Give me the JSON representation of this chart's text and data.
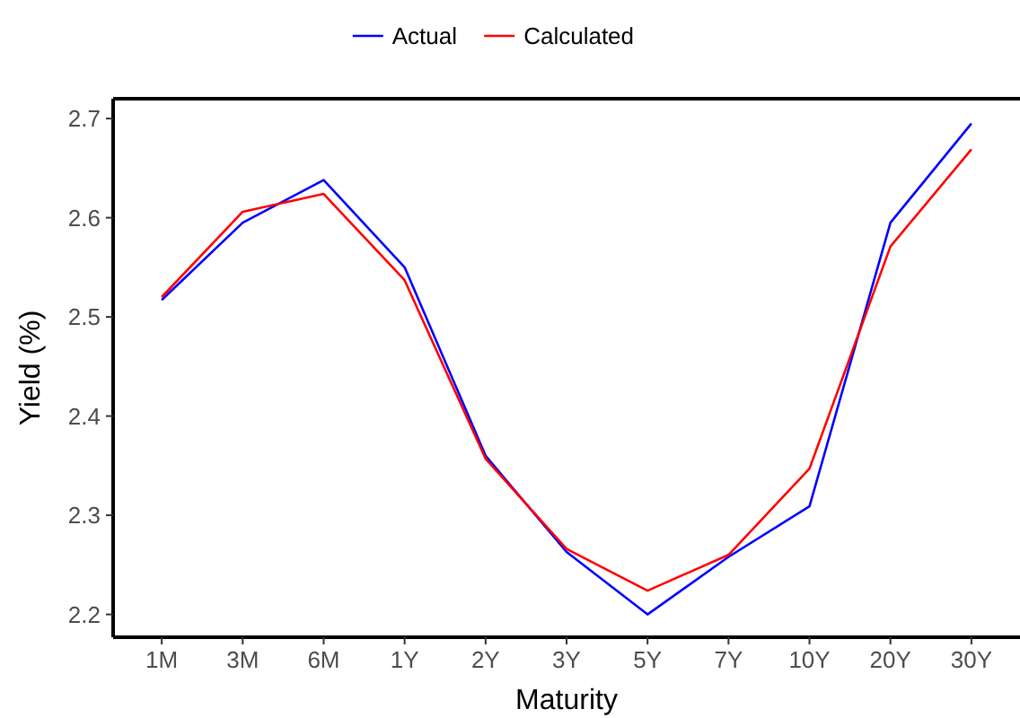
{
  "chart_data": {
    "type": "line",
    "xlabel": "Maturity",
    "ylabel": "Yield (%)",
    "categories": [
      "1M",
      "3M",
      "6M",
      "1Y",
      "2Y",
      "3Y",
      "5Y",
      "7Y",
      "10Y",
      "20Y",
      "30Y"
    ],
    "series": [
      {
        "name": "Actual",
        "color": "#0000ff",
        "values": [
          2.517,
          2.595,
          2.638,
          2.55,
          2.36,
          2.263,
          2.2,
          2.258,
          2.309,
          2.595,
          2.695
        ]
      },
      {
        "name": "Calculated",
        "color": "#ff0000",
        "values": [
          2.52,
          2.606,
          2.624,
          2.537,
          2.357,
          2.266,
          2.224,
          2.26,
          2.347,
          2.571,
          2.669
        ]
      }
    ],
    "ylim": [
      2.177,
      2.72
    ],
    "yticks": [
      2.2,
      2.3,
      2.4,
      2.5,
      2.6,
      2.7
    ],
    "grid": false,
    "legend": "top",
    "marker": "none",
    "line_style": "solid"
  }
}
